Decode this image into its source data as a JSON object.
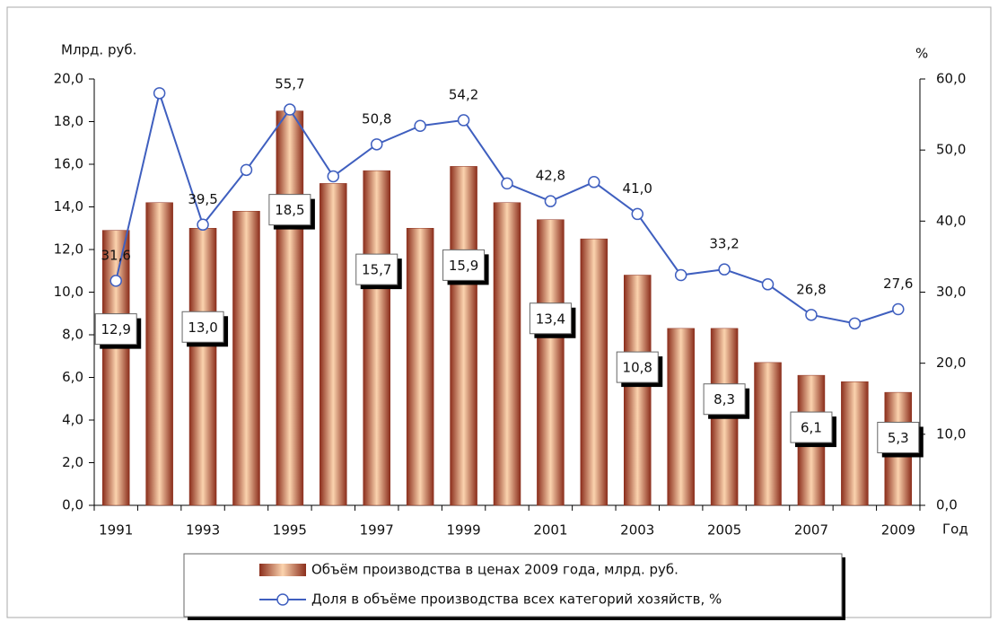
{
  "chart_data": {
    "type": "bar",
    "y_label": "Млрд. руб.",
    "y2_label": "%",
    "x_label": "Год",
    "categories": [
      "1991",
      null,
      "1993",
      null,
      "1995",
      null,
      "1997",
      null,
      "1999",
      null,
      "2001",
      null,
      "2003",
      null,
      "2005",
      null,
      "2007",
      null,
      "2009"
    ],
    "series": [
      {
        "name": "Объём производства в ценах 2009 года, млрд. руб.",
        "type": "bar",
        "color": "#8b2e1c",
        "values": [
          12.9,
          14.2,
          13.0,
          13.8,
          18.5,
          15.1,
          15.7,
          13.0,
          15.9,
          14.2,
          13.4,
          12.5,
          10.8,
          8.3,
          8.3,
          6.7,
          6.1,
          5.8,
          5.3
        ],
        "value_labels": [
          "12,9",
          null,
          "13,0",
          null,
          "18,5",
          null,
          "15,7",
          null,
          "15,9",
          null,
          "13,4",
          null,
          "10,8",
          null,
          "8,3",
          null,
          "6,1",
          null,
          "5,3"
        ]
      },
      {
        "name": "Доля в объёме производства всех категорий хозяйств, %",
        "type": "line",
        "axis": "y2",
        "color": "#3f5fbf",
        "values": [
          31.6,
          58.0,
          39.5,
          47.2,
          55.7,
          46.3,
          50.8,
          53.4,
          54.2,
          45.3,
          42.8,
          45.5,
          41.0,
          32.4,
          33.2,
          31.1,
          26.8,
          25.6,
          27.6
        ],
        "value_labels": [
          "31,6",
          null,
          "39,5",
          null,
          "55,7",
          null,
          "50,8",
          null,
          "54,2",
          null,
          "42,8",
          null,
          "41,0",
          null,
          "33,2",
          null,
          "26,8",
          null,
          "27,6"
        ]
      }
    ],
    "ylim": [
      0,
      20
    ],
    "yticks": [
      {
        "value": 0,
        "label": "0,0"
      },
      {
        "value": 2,
        "label": "2,0"
      },
      {
        "value": 4,
        "label": "4,0"
      },
      {
        "value": 6,
        "label": "6,0"
      },
      {
        "value": 8,
        "label": "8,0"
      },
      {
        "value": 10,
        "label": "10,0"
      },
      {
        "value": 12,
        "label": "12,0"
      },
      {
        "value": 14,
        "label": "14,0"
      },
      {
        "value": 16,
        "label": "16,0"
      },
      {
        "value": 18,
        "label": "18,0"
      },
      {
        "value": 20,
        "label": "20,0"
      }
    ],
    "y2lim": [
      0,
      60
    ],
    "y2ticks": [
      {
        "value": 0,
        "label": "0,0"
      },
      {
        "value": 10,
        "label": "10,0"
      },
      {
        "value": 20,
        "label": "20,0"
      },
      {
        "value": 30,
        "label": "30,0"
      },
      {
        "value": 40,
        "label": "40,0"
      },
      {
        "value": 50,
        "label": "50,0"
      },
      {
        "value": 60,
        "label": "60,0"
      }
    ],
    "legend": "bottom"
  }
}
